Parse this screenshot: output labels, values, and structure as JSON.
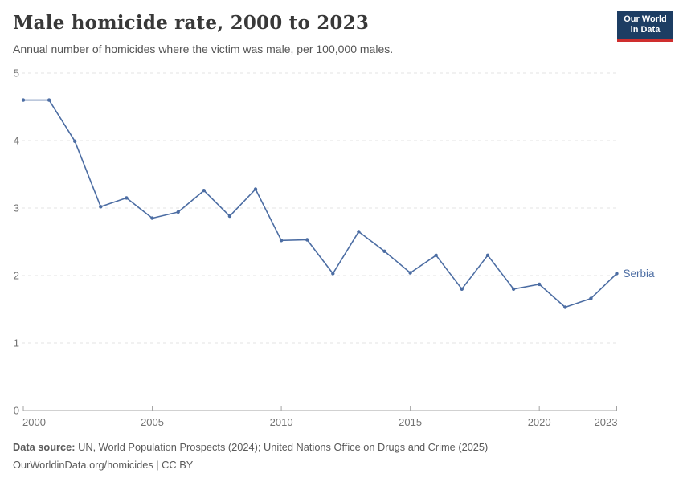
{
  "header": {
    "title": "Male homicide rate, 2000 to 2023",
    "subtitle": "Annual number of homicides where the victim was male, per 100,000 males.",
    "logo": {
      "line1": "Our World",
      "line2": "in Data",
      "bg_color": "#1d3d63",
      "accent_color": "#cf2e2e"
    }
  },
  "chart_data": {
    "type": "line",
    "title": "Male homicide rate, 2000 to 2023",
    "xlabel": "",
    "ylabel": "",
    "x": [
      2000,
      2001,
      2002,
      2003,
      2004,
      2005,
      2006,
      2007,
      2008,
      2009,
      2010,
      2011,
      2012,
      2013,
      2014,
      2015,
      2016,
      2017,
      2018,
      2019,
      2020,
      2021,
      2022,
      2023
    ],
    "series": [
      {
        "name": "Serbia",
        "color": "#4c6da3",
        "values": [
          4.6,
          4.6,
          3.99,
          3.02,
          3.15,
          2.85,
          2.94,
          3.26,
          2.88,
          3.28,
          2.52,
          2.53,
          2.03,
          2.65,
          2.36,
          2.04,
          2.3,
          1.8,
          2.3,
          1.8,
          1.87,
          1.53,
          1.66,
          2.03
        ]
      }
    ],
    "ylim": [
      0,
      5
    ],
    "yticks": [
      0,
      1,
      2,
      3,
      4,
      5
    ],
    "xticks": [
      2000,
      2005,
      2010,
      2015,
      2020,
      2023
    ],
    "grid": "horizontal-dashed",
    "legend_position": "end-of-line-label",
    "axis_color": "#a3a3a3",
    "grid_color": "#e3e3e3",
    "tick_label_color": "#737373"
  },
  "footer": {
    "source_label": "Data source:",
    "source_text": " UN, World Population Prospects (2024); United Nations Office on Drugs and Crime (2025)",
    "license_line": "OurWorldinData.org/homicides | CC BY"
  }
}
